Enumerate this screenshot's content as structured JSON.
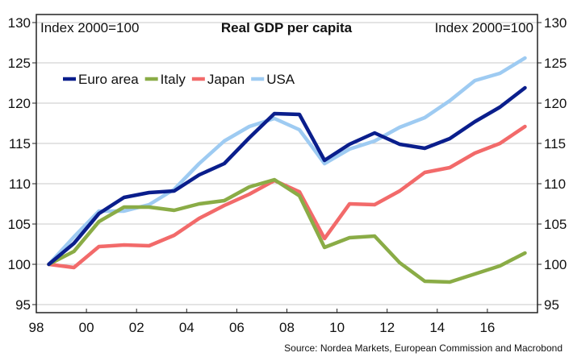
{
  "chart_data": {
    "type": "line",
    "title": "Real GDP per capita",
    "left_axis_label": "Index 2000=100",
    "right_axis_label": "Index 2000=100",
    "source": "Source: Nordea Markets, European Commission and Macrobond",
    "ylim": [
      94,
      131
    ],
    "y_ticks": [
      95,
      100,
      105,
      110,
      115,
      120,
      125,
      130
    ],
    "xlim": [
      1998,
      2018
    ],
    "x_ticks": [
      1998,
      2000,
      2002,
      2004,
      2006,
      2008,
      2010,
      2012,
      2014,
      2016
    ],
    "x_tick_labels": [
      "98",
      "00",
      "02",
      "04",
      "06",
      "08",
      "10",
      "12",
      "14",
      "16"
    ],
    "grid": "horizontal",
    "legend_position": "top-left",
    "x": [
      1998.5,
      1999.5,
      2000.5,
      2001.5,
      2002.5,
      2003.5,
      2004.5,
      2005.5,
      2006.5,
      2007.5,
      2008.5,
      2009.5,
      2010.5,
      2011.5,
      2012.5,
      2013.5,
      2014.5,
      2015.5,
      2016.5,
      2017.5
    ],
    "series": [
      {
        "name": "Euro area",
        "color": "#0a1e8c",
        "values": [
          100.0,
          102.6,
          106.3,
          108.3,
          108.9,
          109.1,
          111.1,
          112.5,
          115.7,
          118.7,
          118.6,
          112.9,
          114.9,
          116.3,
          114.9,
          114.4,
          115.6,
          117.7,
          119.5,
          121.9
        ]
      },
      {
        "name": "Italy",
        "color": "#8aac46",
        "values": [
          100.0,
          101.6,
          105.3,
          107.1,
          107.1,
          106.7,
          107.5,
          107.9,
          109.6,
          110.5,
          108.5,
          102.1,
          103.3,
          103.5,
          100.2,
          97.9,
          97.8,
          98.8,
          99.8,
          101.4
        ]
      },
      {
        "name": "Japan",
        "color": "#f26a6a",
        "values": [
          100.0,
          99.6,
          102.2,
          102.4,
          102.3,
          103.6,
          105.7,
          107.3,
          108.7,
          110.4,
          109.0,
          103.2,
          107.5,
          107.4,
          109.1,
          111.4,
          112.0,
          113.8,
          115.0,
          117.1
        ]
      },
      {
        "name": "USA",
        "color": "#9ecbf2",
        "values": [
          100.0,
          103.4,
          106.6,
          106.6,
          107.4,
          109.3,
          112.5,
          115.3,
          117.1,
          118.1,
          116.7,
          112.5,
          114.3,
          115.3,
          117.0,
          118.2,
          120.3,
          122.8,
          123.7,
          125.6
        ]
      }
    ]
  }
}
